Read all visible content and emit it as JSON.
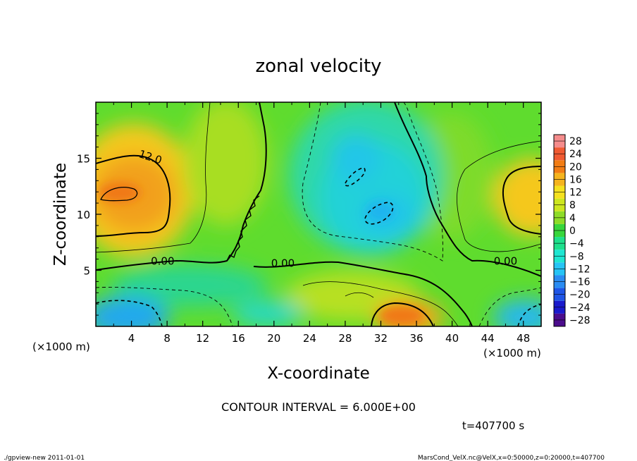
{
  "chart_data": {
    "type": "heatmap",
    "title": "zonal velocity",
    "xlabel": "X-coordinate",
    "ylabel": "Z-coordinate",
    "x_unit_label": "(×1000 m)",
    "y_unit_label": "(×1000 m)",
    "xlim": [
      0,
      50
    ],
    "ylim": [
      0,
      20
    ],
    "x_ticks": [
      4,
      8,
      12,
      16,
      20,
      24,
      28,
      32,
      36,
      40,
      44,
      48
    ],
    "y_ticks": [
      5,
      10,
      15
    ],
    "contour_interval_text": "CONTOUR INTERVAL = 6.000E+00",
    "time_text": "t=407700 s",
    "contour_labels": [
      {
        "text": "12.0",
        "x": 6.0,
        "y": 14.8
      },
      {
        "text": "0.00",
        "x": 7.5,
        "y": 5.5
      },
      {
        "text": "0.00",
        "x": 21.0,
        "y": 5.3
      },
      {
        "text": "0.00",
        "x": 46.0,
        "y": 5.5
      }
    ],
    "colorbar": {
      "levels": [
        -28,
        -24,
        -20,
        -16,
        -12,
        -8,
        -4,
        0,
        4,
        8,
        12,
        16,
        20,
        24,
        28
      ],
      "labels": [
        "28",
        "24",
        "20",
        "16",
        "12",
        "8",
        "4",
        "0",
        "−4",
        "−8",
        "−12",
        "−16",
        "−20",
        "−24",
        "−28"
      ],
      "colors": [
        "#4b0d8c",
        "#1a1acc",
        "#1f55e6",
        "#2b8cf2",
        "#26c4f5",
        "#1ee6d2",
        "#1fe08c",
        "#38d63c",
        "#8edc28",
        "#cde61e",
        "#f5e11e",
        "#f5b41e",
        "#f27d14",
        "#f05a32",
        "#f58c8c"
      ]
    },
    "features": [
      {
        "name": "jet-west",
        "x": 3.5,
        "z": 12.0,
        "value": 18
      },
      {
        "name": "jet-east",
        "x": 49.0,
        "z": 11.5,
        "value": 14
      },
      {
        "name": "low-level-jet",
        "x": 34.0,
        "z": 1.0,
        "value": 16
      },
      {
        "name": "easterly-core-upper",
        "x": 29.5,
        "z": 13.5,
        "value": -9
      },
      {
        "name": "easterly-core-mid",
        "x": 32.0,
        "z": 10.0,
        "value": -11
      },
      {
        "name": "easterly-surface-west",
        "x": 4.0,
        "z": 1.0,
        "value": -12
      },
      {
        "name": "easterly-surface-east",
        "x": 48.0,
        "z": 1.0,
        "value": -10
      }
    ]
  },
  "footer": {
    "left": "./gpview-new  2011-01-01",
    "right": "MarsCond_VelX.nc@VelX,x=0:50000,z=0:20000,t=407700"
  }
}
